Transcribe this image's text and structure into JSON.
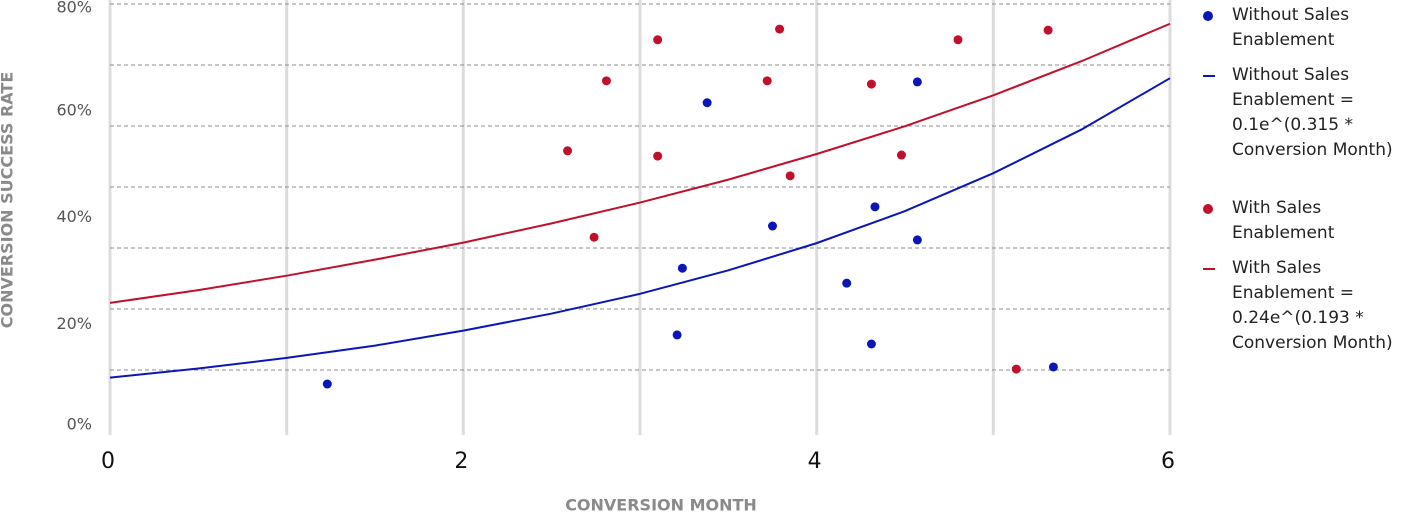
{
  "chart_data": {
    "type": "scatter",
    "xlabel": "CONVERSION MONTH",
    "ylabel": "CONVERSION SUCCESS RATE",
    "xlim": [
      0,
      6
    ],
    "ylim": [
      0,
      80
    ],
    "xticks": [
      0,
      2,
      4,
      6
    ],
    "x_minor_ticks": [
      1,
      3,
      5
    ],
    "yticks": [
      {
        "value": 0,
        "label": "0%"
      },
      {
        "value": 20,
        "label": "20%"
      },
      {
        "value": 40,
        "label": "40%"
      },
      {
        "value": 60,
        "label": "60%"
      },
      {
        "value": 80,
        "label": "80%"
      }
    ],
    "y_grid_lines": [
      11.43,
      22.86,
      34.29,
      45.71,
      57.14,
      68.57,
      80
    ],
    "grid": true,
    "legend": "right",
    "series": [
      {
        "name": "Without Sales Enablement",
        "type": "scatter",
        "color": "#0b16b8",
        "x": [
          1.23,
          3.24,
          3.21,
          3.38,
          3.75,
          4.17,
          4.31,
          4.33,
          4.57,
          4.57,
          5.34
        ],
        "values": [
          8.8,
          30.5,
          18.0,
          61.5,
          38.4,
          27.7,
          16.3,
          42.0,
          65.4,
          35.8,
          12.0
        ]
      },
      {
        "name": "Without Sales Enablement = 0.1e^(0.315 * Conversion Month)",
        "type": "line",
        "color": "#0b16b8",
        "x": [
          0,
          0.5,
          1,
          1.5,
          2,
          2.5,
          3,
          3.5,
          4,
          4.5,
          5,
          5.5,
          6
        ],
        "values": [
          10,
          11.7,
          13.7,
          16.0,
          18.8,
          22.0,
          25.7,
          30.1,
          35.2,
          41.2,
          48.3,
          56.5,
          66.1
        ]
      },
      {
        "name": "With Sales Enablement",
        "type": "scatter",
        "color": "#c0102c",
        "x": [
          2.59,
          2.74,
          2.81,
          3.1,
          3.1,
          3.72,
          3.79,
          3.85,
          4.31,
          4.48,
          4.8,
          5.13,
          5.31
        ],
        "values": [
          52.5,
          36.3,
          65.6,
          73.3,
          51.5,
          65.6,
          75.3,
          47.8,
          65.0,
          51.7,
          73.3,
          11.6,
          75.1
        ]
      },
      {
        "name": "With Sales Enablement = 0.24e^(0.193 * Conversion Month)",
        "type": "line",
        "color": "#c0102c",
        "x": [
          0,
          0.5,
          1,
          1.5,
          2,
          2.5,
          3,
          3.5,
          4,
          4.5,
          5,
          5.5,
          6
        ],
        "values": [
          24,
          26.4,
          29.1,
          32.1,
          35.3,
          38.9,
          42.8,
          47.1,
          51.9,
          57.1,
          62.9,
          69.3,
          76.3
        ]
      }
    ]
  }
}
